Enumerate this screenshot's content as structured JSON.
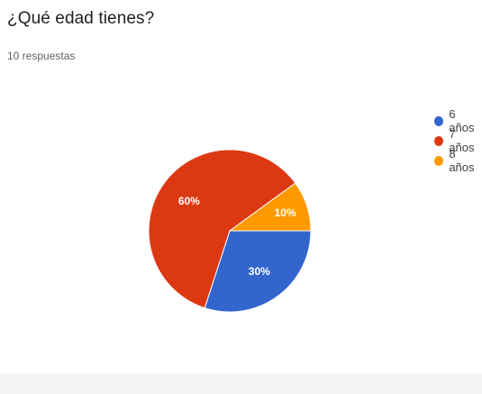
{
  "question": {
    "title": "¿Qué edad tienes?",
    "responses": "10 respuestas"
  },
  "chart_data": {
    "type": "pie",
    "categories": [
      "6 años",
      "7 años",
      "8 años"
    ],
    "values": [
      30,
      60,
      10
    ],
    "labels": [
      "30%",
      "60%",
      "10%"
    ],
    "colors": [
      "#3366cc",
      "#dc3912",
      "#ff9900"
    ],
    "legend_position": "right"
  }
}
